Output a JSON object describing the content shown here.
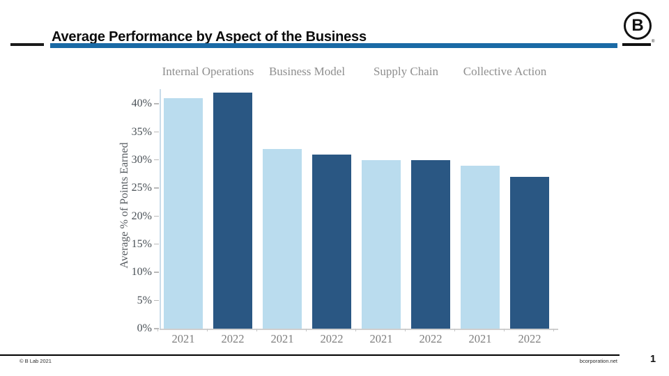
{
  "header": {
    "title": "Average Performance by Aspect of the Business",
    "accent_color": "#1a6aa5",
    "b_logo_letter": "B",
    "b_logo_reg": "®"
  },
  "icons": {
    "top_left": "sdg-wheel-icon",
    "top_right": "b-corp-circle-icon"
  },
  "chart_data": {
    "type": "bar",
    "title": "Average Performance by Aspect of the Business",
    "ylabel": "Average % of Points Earned",
    "xlabel": "",
    "ylim": [
      0,
      42
    ],
    "ytick_step": 5,
    "yticks": [
      "0%",
      "5%",
      "10%",
      "15%",
      "20%",
      "25%",
      "30%",
      "35%",
      "40%"
    ],
    "grid": false,
    "legend_position": "none",
    "groups": [
      "Internal Operations",
      "Business Model",
      "Supply Chain",
      "Collective Action"
    ],
    "categories": [
      "2021",
      "2022"
    ],
    "series": [
      {
        "name": "2021",
        "color": "#badcee",
        "values": [
          41,
          32,
          30,
          29
        ]
      },
      {
        "name": "2022",
        "color": "#2a5783",
        "values": [
          42,
          31,
          30,
          27
        ]
      }
    ]
  },
  "footer": {
    "copyright": "© B Lab 2021",
    "website": "bcorporation.net",
    "page_number": "1"
  }
}
